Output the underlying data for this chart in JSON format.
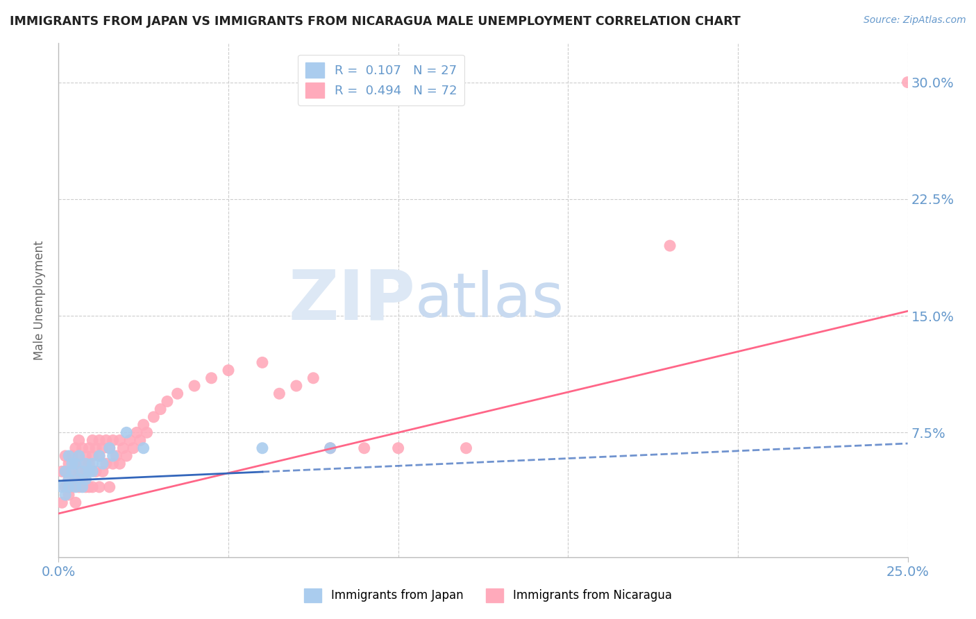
{
  "title": "IMMIGRANTS FROM JAPAN VS IMMIGRANTS FROM NICARAGUA MALE UNEMPLOYMENT CORRELATION CHART",
  "source_text": "Source: ZipAtlas.com",
  "ylabel": "Male Unemployment",
  "xlim": [
    0.0,
    0.25
  ],
  "ylim": [
    -0.005,
    0.325
  ],
  "yticks": [
    0.075,
    0.15,
    0.225,
    0.3
  ],
  "ytick_labels": [
    "7.5%",
    "15.0%",
    "22.5%",
    "30.0%"
  ],
  "xtick_labels": [
    "0.0%",
    "25.0%"
  ],
  "background_color": "#ffffff",
  "grid_color": "#cccccc",
  "title_color": "#222222",
  "axis_label_color": "#6699cc",
  "watermark_zip": "ZIP",
  "watermark_atlas": "atlas",
  "watermark_color_zip": "#dde8f5",
  "watermark_color_atlas": "#c8daf0",
  "legend_line1": "R =  0.107   N = 27",
  "legend_line2": "R =  0.494   N = 72",
  "japan_color": "#aaccee",
  "nicaragua_color": "#ffaabb",
  "japan_line_color": "#3366bb",
  "nicaragua_line_color": "#ff6688",
  "japan_line_style": "-",
  "nicaragua_line_style": "-",
  "japan_scatter_x": [
    0.001,
    0.002,
    0.002,
    0.003,
    0.003,
    0.003,
    0.004,
    0.004,
    0.005,
    0.005,
    0.006,
    0.006,
    0.007,
    0.007,
    0.008,
    0.008,
    0.009,
    0.01,
    0.01,
    0.012,
    0.013,
    0.015,
    0.016,
    0.02,
    0.025,
    0.06,
    0.08
  ],
  "japan_scatter_y": [
    0.04,
    0.05,
    0.035,
    0.045,
    0.04,
    0.06,
    0.05,
    0.055,
    0.04,
    0.055,
    0.045,
    0.06,
    0.05,
    0.04,
    0.055,
    0.045,
    0.05,
    0.055,
    0.05,
    0.06,
    0.055,
    0.065,
    0.06,
    0.075,
    0.065,
    0.065,
    0.065
  ],
  "nicaragua_scatter_x": [
    0.001,
    0.001,
    0.002,
    0.002,
    0.002,
    0.003,
    0.003,
    0.003,
    0.004,
    0.004,
    0.004,
    0.005,
    0.005,
    0.005,
    0.005,
    0.006,
    0.006,
    0.006,
    0.006,
    0.007,
    0.007,
    0.007,
    0.008,
    0.008,
    0.008,
    0.009,
    0.009,
    0.009,
    0.01,
    0.01,
    0.01,
    0.011,
    0.011,
    0.012,
    0.012,
    0.012,
    0.013,
    0.013,
    0.014,
    0.014,
    0.015,
    0.015,
    0.016,
    0.016,
    0.017,
    0.018,
    0.018,
    0.019,
    0.02,
    0.021,
    0.022,
    0.023,
    0.024,
    0.025,
    0.026,
    0.028,
    0.03,
    0.032,
    0.035,
    0.04,
    0.045,
    0.05,
    0.06,
    0.065,
    0.07,
    0.075,
    0.08,
    0.09,
    0.1,
    0.12,
    0.18,
    0.25
  ],
  "nicaragua_scatter_y": [
    0.03,
    0.05,
    0.04,
    0.06,
    0.05,
    0.035,
    0.055,
    0.045,
    0.04,
    0.06,
    0.05,
    0.03,
    0.055,
    0.045,
    0.065,
    0.04,
    0.06,
    0.05,
    0.07,
    0.045,
    0.065,
    0.055,
    0.04,
    0.06,
    0.05,
    0.04,
    0.055,
    0.065,
    0.04,
    0.06,
    0.07,
    0.05,
    0.065,
    0.04,
    0.06,
    0.07,
    0.05,
    0.065,
    0.055,
    0.07,
    0.04,
    0.065,
    0.055,
    0.07,
    0.06,
    0.055,
    0.07,
    0.065,
    0.06,
    0.07,
    0.065,
    0.075,
    0.07,
    0.08,
    0.075,
    0.085,
    0.09,
    0.095,
    0.1,
    0.105,
    0.11,
    0.115,
    0.12,
    0.1,
    0.105,
    0.11,
    0.065,
    0.065,
    0.065,
    0.065,
    0.195,
    0.3
  ],
  "japan_line_x0": 0.0,
  "japan_line_y0": 0.044,
  "japan_line_x1": 0.25,
  "japan_line_y1": 0.068,
  "nicaragua_line_x0": 0.0,
  "nicaragua_line_y0": 0.023,
  "nicaragua_line_x1": 0.25,
  "nicaragua_line_y1": 0.153
}
